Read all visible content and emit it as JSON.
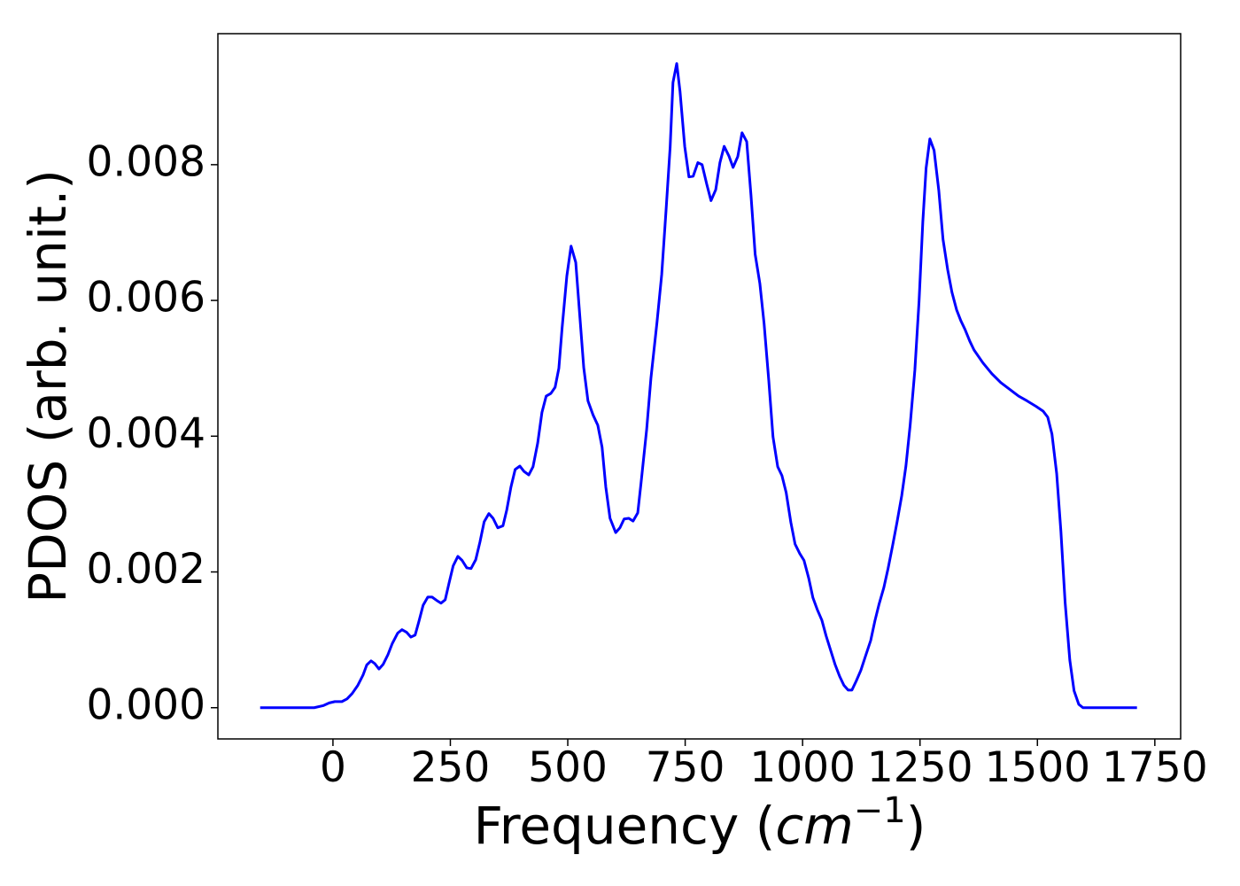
{
  "chart_data": {
    "type": "line",
    "ylabel": "PDOS (arb. unit.)",
    "xlabel": [
      "Frequency (",
      "cm",
      "−1",
      ")"
    ],
    "color": "#0000ff",
    "xlim": [
      -245,
      1805
    ],
    "ylim": [
      -0.00046,
      0.00993
    ],
    "xticks": [
      0,
      250,
      500,
      750,
      1000,
      1250,
      1500,
      1750
    ],
    "yticks": [
      {
        "value": 0,
        "label": "0.000"
      },
      0.002,
      0.004,
      0.006,
      0.008
    ],
    "x": [
      -155,
      -40,
      -21,
      -8,
      4,
      19,
      30,
      41,
      53,
      64,
      72,
      81,
      89,
      98,
      107,
      117,
      126,
      138,
      147,
      157,
      166,
      175,
      183,
      192,
      202,
      211,
      221,
      230,
      239,
      247,
      256,
      266,
      275,
      285,
      294,
      304,
      313,
      322,
      332,
      341,
      351,
      362,
      370,
      379,
      388,
      398,
      407,
      417,
      426,
      436,
      445,
      454,
      464,
      473,
      481,
      488,
      498,
      507,
      517,
      524,
      534,
      543,
      554,
      564,
      573,
      581,
      590,
      602,
      611,
      620,
      630,
      639,
      649,
      656,
      668,
      677,
      690,
      700,
      709,
      718,
      724,
      732,
      739,
      749,
      758,
      767,
      777,
      786,
      796,
      805,
      815,
      824,
      833,
      843,
      852,
      862,
      871,
      881,
      890,
      899,
      909,
      918,
      928,
      937,
      947,
      956,
      965,
      975,
      984,
      994,
      1003,
      1013,
      1022,
      1031,
      1041,
      1050,
      1060,
      1069,
      1079,
      1088,
      1097,
      1105,
      1114,
      1124,
      1133,
      1145,
      1154,
      1163,
      1173,
      1182,
      1192,
      1201,
      1211,
      1220,
      1229,
      1239,
      1248,
      1256,
      1263,
      1271,
      1280,
      1290,
      1299,
      1309,
      1318,
      1328,
      1337,
      1346,
      1356,
      1365,
      1384,
      1403,
      1422,
      1441,
      1460,
      1478,
      1497,
      1512,
      1522,
      1531,
      1541,
      1550,
      1559,
      1569,
      1578,
      1588,
      1597,
      1610,
      1712
    ],
    "values": [
      0,
      0,
      3e-05,
      7e-05,
      9e-05,
      9e-05,
      0.00013,
      0.00021,
      0.00033,
      0.00048,
      0.00063,
      0.00069,
      0.00065,
      0.00057,
      0.00064,
      0.00078,
      0.00094,
      0.0011,
      0.00115,
      0.00111,
      0.00104,
      0.00107,
      0.00127,
      0.00151,
      0.00163,
      0.00163,
      0.00158,
      0.00154,
      0.00159,
      0.00183,
      0.00209,
      0.00223,
      0.00217,
      0.00206,
      0.00205,
      0.00218,
      0.00244,
      0.00274,
      0.00286,
      0.00279,
      0.00265,
      0.00268,
      0.00291,
      0.00325,
      0.00351,
      0.00356,
      0.00348,
      0.00343,
      0.00355,
      0.0039,
      0.00435,
      0.00459,
      0.00463,
      0.00472,
      0.005,
      0.0056,
      0.00636,
      0.0068,
      0.00656,
      0.00592,
      0.00501,
      0.00452,
      0.00431,
      0.00416,
      0.00384,
      0.00325,
      0.00279,
      0.00258,
      0.00265,
      0.00278,
      0.00279,
      0.00275,
      0.00287,
      0.00331,
      0.0041,
      0.00485,
      0.00568,
      0.00638,
      0.0073,
      0.00826,
      0.00921,
      0.00949,
      0.00908,
      0.00827,
      0.00782,
      0.00783,
      0.00803,
      0.008,
      0.00771,
      0.00747,
      0.00763,
      0.00803,
      0.00827,
      0.00813,
      0.00796,
      0.00812,
      0.00847,
      0.00834,
      0.00756,
      0.00668,
      0.00625,
      0.00566,
      0.00482,
      0.00399,
      0.00355,
      0.00342,
      0.00317,
      0.00273,
      0.00241,
      0.00227,
      0.00217,
      0.00191,
      0.00162,
      0.00145,
      0.00129,
      0.00106,
      0.00084,
      0.00064,
      0.00046,
      0.00033,
      0.00026,
      0.00026,
      0.00039,
      0.00055,
      0.00074,
      0.00099,
      0.00128,
      0.00153,
      0.00177,
      0.00205,
      0.0024,
      0.00273,
      0.00312,
      0.00356,
      0.00416,
      0.00497,
      0.00599,
      0.00716,
      0.00795,
      0.00838,
      0.00821,
      0.00762,
      0.0069,
      0.00645,
      0.00612,
      0.00586,
      0.0057,
      0.00557,
      0.0054,
      0.00527,
      0.00508,
      0.00492,
      0.00479,
      0.00469,
      0.00459,
      0.00452,
      0.00444,
      0.00437,
      0.00428,
      0.00403,
      0.00345,
      0.0026,
      0.00155,
      0.0007,
      0.00025,
      5e-05,
      0,
      0,
      0
    ]
  }
}
